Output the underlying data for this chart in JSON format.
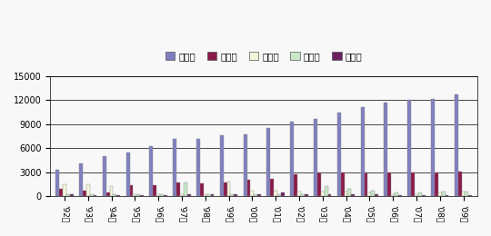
{
  "years": [
    "'92년",
    "'93년",
    "'94년",
    "'95년",
    "'96년",
    "'97년",
    "'98년",
    "'99년",
    "'00년",
    "'01년",
    "'02년",
    "'03년",
    "'04년",
    "'05년",
    "'06년",
    "'07년",
    "'08년",
    "'09년"
  ],
  "승용차": [
    3300,
    4100,
    5000,
    5500,
    6300,
    7100,
    7100,
    7600,
    7700,
    8500,
    9300,
    9700,
    10500,
    11100,
    11700,
    12000,
    12200,
    12700
  ],
  "화물차": [
    900,
    700,
    500,
    1300,
    1300,
    1700,
    1600,
    1700,
    2000,
    2200,
    2700,
    2900,
    2900,
    3000,
    3000,
    3000,
    2900,
    3100
  ],
  "승합차": [
    1500,
    1500,
    1200,
    200,
    200,
    200,
    200,
    1800,
    700,
    700,
    600,
    600,
    600,
    500,
    200,
    200,
    400,
    600
  ],
  "이륜차": [
    200,
    200,
    200,
    200,
    200,
    1700,
    200,
    200,
    200,
    200,
    200,
    1200,
    900,
    700,
    500,
    400,
    600,
    600
  ],
  "특수차": [
    200,
    100,
    100,
    100,
    100,
    200,
    200,
    200,
    200,
    400,
    200,
    200,
    200,
    200,
    100,
    100,
    100,
    100
  ],
  "colors": {
    "승용차": "#8080c0",
    "화물차": "#8b1a4a",
    "승합차": "#f5f5dc",
    "이륜차": "#c8e8c8",
    "특수차": "#6b2060"
  },
  "ylim": [
    0,
    15000
  ],
  "yticks": [
    0,
    3000,
    6000,
    9000,
    12000,
    15000
  ],
  "background": "#f5f5f5",
  "legend_labels": [
    "승용차",
    "화물차",
    "승합차",
    "이륜차",
    "특수차"
  ]
}
